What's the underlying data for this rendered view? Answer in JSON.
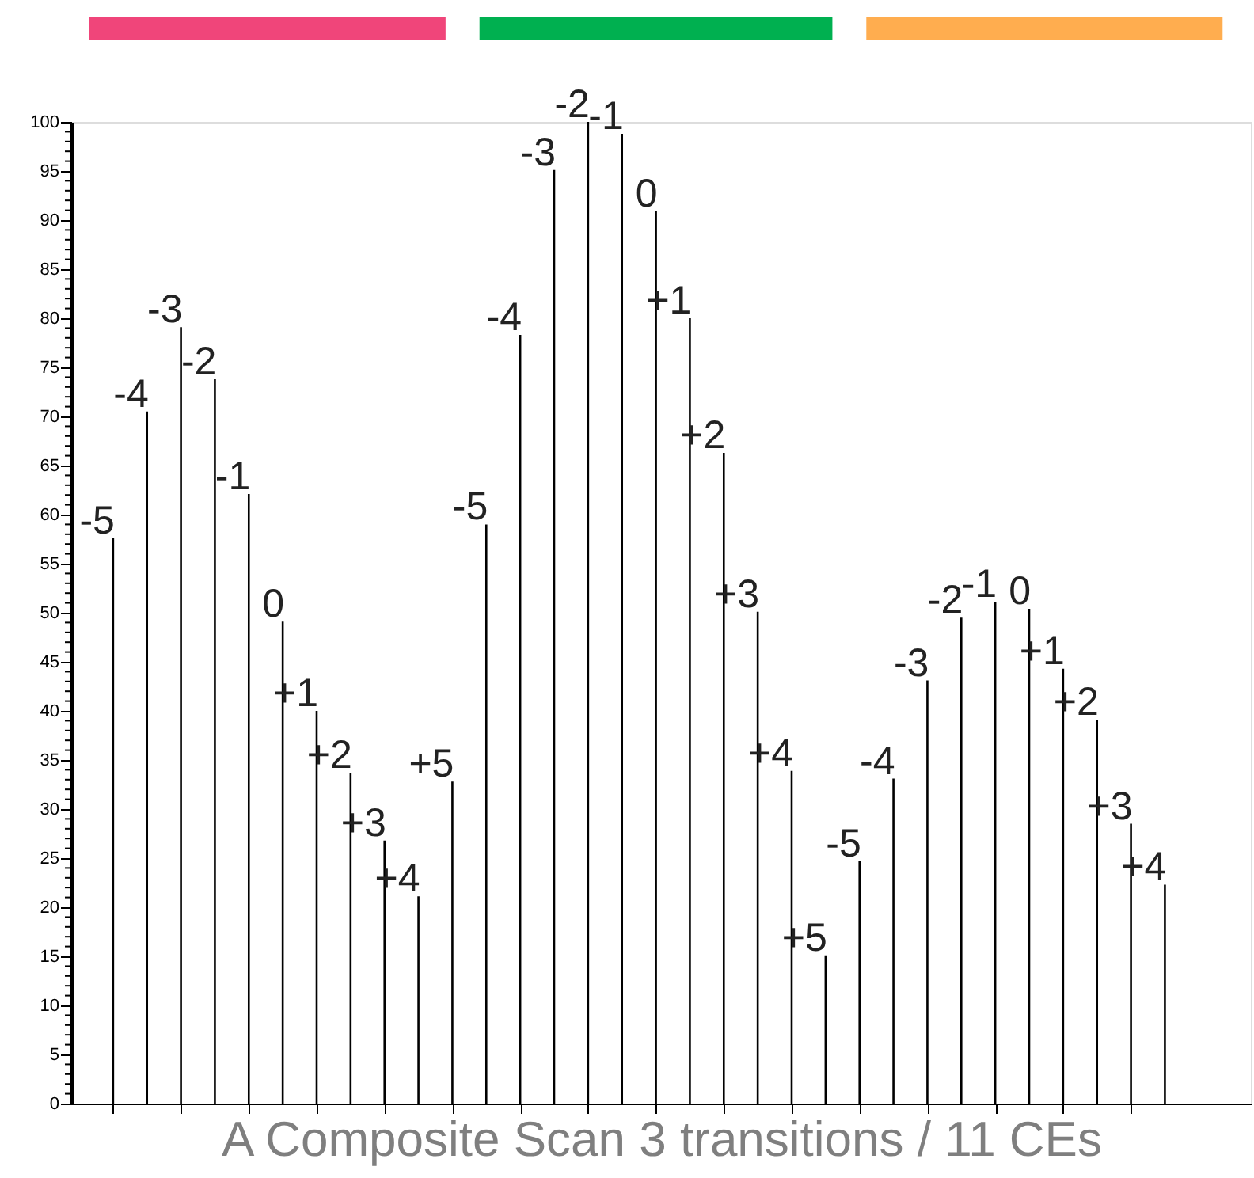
{
  "chart_data": {
    "type": "bar",
    "xlabel": "A Composite Scan 3 transitions / 11 CEs",
    "categories": [
      "-5",
      "-4",
      "-3",
      "-2",
      "-1",
      "0",
      "+1",
      "+2",
      "+3",
      "+4",
      "+5",
      "-5",
      "-4",
      "-3",
      "-2",
      "-1",
      "0",
      "+1",
      "+2",
      "+3",
      "+4",
      "+5",
      "-5",
      "-4",
      "-3",
      "-2",
      "-1",
      "0",
      "+1",
      "+2",
      "+3",
      "+4"
    ],
    "values": [
      57.6,
      70.5,
      79.1,
      73.8,
      62.1,
      49.1,
      40,
      33.7,
      26.8,
      21.1,
      32.8,
      59,
      78.3,
      95.1,
      100,
      98.8,
      90.9,
      80,
      66.3,
      50.1,
      33.9,
      15.1,
      24.7,
      33.1,
      43.1,
      49.5,
      51.1,
      50.4,
      44.3,
      39.1,
      28.5,
      22.3
    ],
    "color": "#000000",
    "ylim": [
      0,
      100
    ],
    "yticks": [
      0,
      {
        "value": 1,
        "label": null
      },
      {
        "value": 2,
        "label": null
      },
      {
        "value": 3,
        "label": null
      },
      {
        "value": 4,
        "label": null
      },
      5,
      {
        "value": 6,
        "label": null
      },
      {
        "value": 7,
        "label": null
      },
      {
        "value": 8,
        "label": null
      },
      {
        "value": 9,
        "label": null
      },
      10,
      {
        "value": 11,
        "label": null
      },
      {
        "value": 12,
        "label": null
      },
      {
        "value": 13,
        "label": null
      },
      {
        "value": 14,
        "label": null
      },
      15,
      {
        "value": 16,
        "label": null
      },
      {
        "value": 17,
        "label": null
      },
      {
        "value": 18,
        "label": null
      },
      {
        "value": 19,
        "label": null
      },
      20,
      {
        "value": 21,
        "label": null
      },
      {
        "value": 22,
        "label": null
      },
      {
        "value": 23,
        "label": null
      },
      {
        "value": 24,
        "label": null
      },
      25,
      {
        "value": 26,
        "label": null
      },
      {
        "value": 27,
        "label": null
      },
      {
        "value": 28,
        "label": null
      },
      {
        "value": 29,
        "label": null
      },
      30,
      {
        "value": 31,
        "label": null
      },
      {
        "value": 32,
        "label": null
      },
      {
        "value": 33,
        "label": null
      },
      {
        "value": 34,
        "label": null
      },
      35,
      {
        "value": 36,
        "label": null
      },
      {
        "value": 37,
        "label": null
      },
      {
        "value": 38,
        "label": null
      },
      {
        "value": 39,
        "label": null
      },
      40,
      {
        "value": 41,
        "label": null
      },
      {
        "value": 42,
        "label": null
      },
      {
        "value": 43,
        "label": null
      },
      {
        "value": 44,
        "label": null
      },
      45,
      {
        "value": 46,
        "label": null
      },
      {
        "value": 47,
        "label": null
      },
      {
        "value": 48,
        "label": null
      },
      {
        "value": 49,
        "label": null
      },
      50,
      {
        "value": 51,
        "label": null
      },
      {
        "value": 52,
        "label": null
      },
      {
        "value": 53,
        "label": null
      },
      {
        "value": 54,
        "label": null
      },
      55,
      {
        "value": 56,
        "label": null
      },
      {
        "value": 57,
        "label": null
      },
      {
        "value": 58,
        "label": null
      },
      {
        "value": 59,
        "label": null
      },
      60,
      {
        "value": 61,
        "label": null
      },
      {
        "value": 62,
        "label": null
      },
      {
        "value": 63,
        "label": null
      },
      {
        "value": 64,
        "label": null
      },
      65,
      {
        "value": 66,
        "label": null
      },
      {
        "value": 67,
        "label": null
      },
      {
        "value": 68,
        "label": null
      },
      {
        "value": 69,
        "label": null
      },
      70,
      {
        "value": 71,
        "label": null
      },
      {
        "value": 72,
        "label": null
      },
      {
        "value": 73,
        "label": null
      },
      {
        "value": 74,
        "label": null
      },
      75,
      {
        "value": 76,
        "label": null
      },
      {
        "value": 77,
        "label": null
      },
      {
        "value": 78,
        "label": null
      },
      {
        "value": 79,
        "label": null
      },
      80,
      {
        "value": 81,
        "label": null
      },
      {
        "value": 82,
        "label": null
      },
      {
        "value": 83,
        "label": null
      },
      {
        "value": 84,
        "label": null
      },
      85,
      {
        "value": 86,
        "label": null
      },
      {
        "value": 87,
        "label": null
      },
      {
        "value": 88,
        "label": null
      },
      {
        "value": 89,
        "label": null
      },
      90,
      {
        "value": 91,
        "label": null
      },
      {
        "value": 92,
        "label": null
      },
      {
        "value": 93,
        "label": null
      },
      {
        "value": 94,
        "label": null
      },
      95,
      {
        "value": 96,
        "label": null
      },
      {
        "value": 97,
        "label": null
      },
      {
        "value": 98,
        "label": null
      },
      {
        "value": 99,
        "label": null
      },
      100
    ],
    "grid": false
  }
}
